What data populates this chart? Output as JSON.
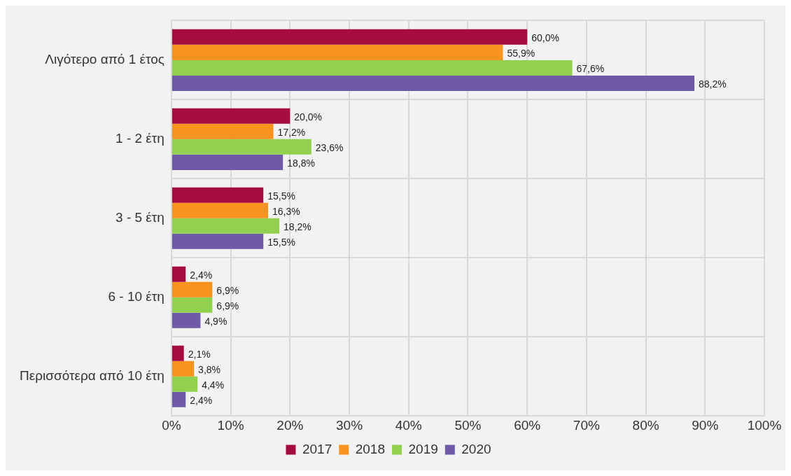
{
  "chart_data": {
    "type": "bar",
    "orientation": "horizontal",
    "categories": [
      "Λιγότερο από 1 έτος",
      "1 - 2 έτη",
      "3 - 5 έτη",
      "6 - 10 έτη",
      "Περισσότερα από 10 έτη"
    ],
    "series": [
      {
        "name": "2017",
        "color": "#a50d3f",
        "values": [
          60.0,
          20.0,
          15.5,
          2.4,
          2.1
        ],
        "value_labels": [
          "60,0%",
          "20,0%",
          "15,5%",
          "2,4%",
          "2,1%"
        ]
      },
      {
        "name": "2018",
        "color": "#f7931e",
        "values": [
          55.9,
          17.2,
          16.3,
          6.9,
          3.8
        ],
        "value_labels": [
          "55,9%",
          "17,2%",
          "16,3%",
          "6,9%",
          "3,8%"
        ]
      },
      {
        "name": "2019",
        "color": "#92d050",
        "values": [
          67.6,
          23.6,
          18.2,
          6.9,
          4.4
        ],
        "value_labels": [
          "67,6%",
          "23,6%",
          "18,2%",
          "6,9%",
          "4,4%"
        ]
      },
      {
        "name": "2020",
        "color": "#6f5aa7",
        "values": [
          88.2,
          18.8,
          15.5,
          4.9,
          2.4
        ],
        "value_labels": [
          "88,2%",
          "18,8%",
          "15,5%",
          "4,9%",
          "2,4%"
        ]
      }
    ],
    "xlim": [
      0,
      100
    ],
    "xticks": [
      {
        "value": 0,
        "label": "0%"
      },
      {
        "value": 10,
        "label": "10%"
      },
      {
        "value": 20,
        "label": "20%"
      },
      {
        "value": 30,
        "label": "30%"
      },
      {
        "value": 40,
        "label": "40%"
      },
      {
        "value": 50,
        "label": "50%"
      },
      {
        "value": 60,
        "label": "60%"
      },
      {
        "value": 70,
        "label": "70%"
      },
      {
        "value": 80,
        "label": "80%"
      },
      {
        "value": 90,
        "label": "90%"
      },
      {
        "value": 100,
        "label": "100%"
      }
    ],
    "grid": true,
    "legend": "bottom"
  }
}
